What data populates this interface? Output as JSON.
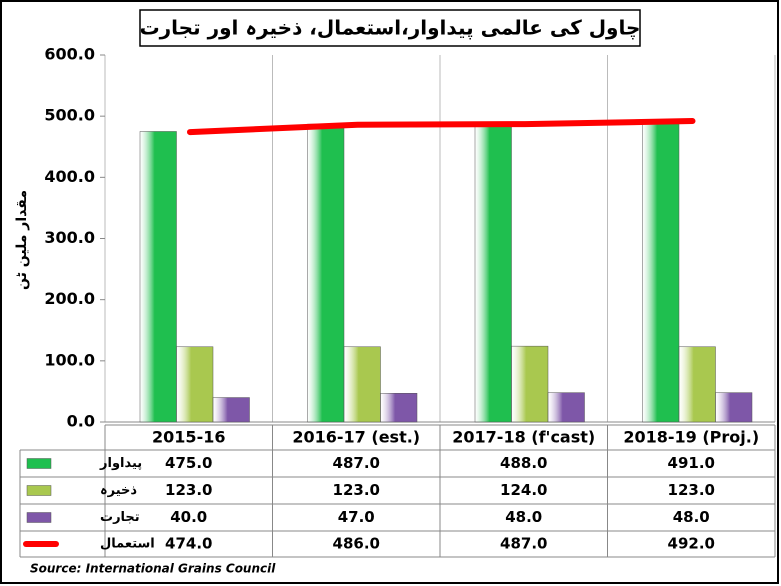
{
  "chart_data": {
    "type": "bar",
    "title": "چاول کی عالمی پیداوار،استعمال، ذخیرہ اور تجارت",
    "ylabel": "مقدار ملین ٹن",
    "source": "Source: International Grains Council",
    "categories": [
      "2015-16",
      "2016-17 (est.)",
      "2017-18 (f'cast)",
      "2018-19 (Proj.)"
    ],
    "series": [
      {
        "name": "پیداوار",
        "type": "bar",
        "color": "#1fbf4f",
        "values": [
          475,
          487,
          488,
          491
        ],
        "value_labels": [
          "475.0",
          "487.0",
          "488.0",
          "491.0"
        ]
      },
      {
        "name": "ذخیرہ",
        "type": "bar",
        "color": "#a9c84f",
        "values": [
          123,
          123,
          124,
          123
        ],
        "value_labels": [
          "123.0",
          "123.0",
          "124.0",
          "123.0"
        ]
      },
      {
        "name": "تجارت",
        "type": "bar",
        "color": "#7e57a8",
        "values": [
          40,
          47,
          48,
          48
        ],
        "value_labels": [
          "40.0",
          "47.0",
          "48.0",
          "48.0"
        ]
      },
      {
        "name": "استعمال",
        "type": "line",
        "color": "#ff0000",
        "values": [
          474,
          486,
          487,
          492
        ],
        "value_labels": [
          "474.0",
          "486.0",
          "487.0",
          "492.0"
        ]
      }
    ],
    "ylim": [
      0,
      600
    ],
    "yticks": [
      {
        "value": 0,
        "label": "0.0"
      },
      {
        "value": 100,
        "label": "100.0"
      },
      {
        "value": 200,
        "label": "200.0"
      },
      {
        "value": 300,
        "label": "300.0"
      },
      {
        "value": 400,
        "label": "400.0"
      },
      {
        "value": 500,
        "label": "500.0"
      },
      {
        "value": 600,
        "label": "600.0"
      }
    ]
  }
}
